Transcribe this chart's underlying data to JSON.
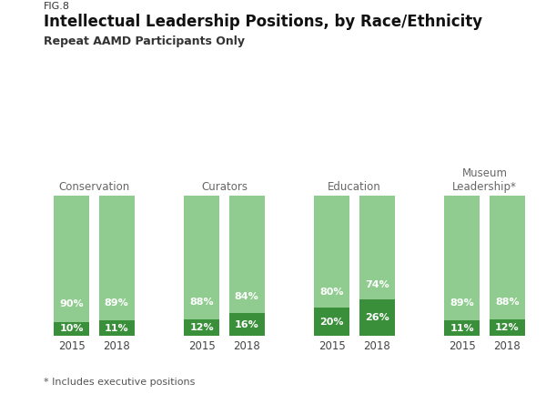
{
  "fig_label": "FIG.8",
  "title": "Intellectual Leadership Positions, by Race/Ethnicity",
  "subtitle": "Repeat AAMD Participants Only",
  "footnote": "* Includes executive positions",
  "categories": [
    "Conservation",
    "Curators",
    "Education",
    "Museum\nLeadership*"
  ],
  "years": [
    "2015",
    "2018"
  ],
  "white_values": [
    90,
    89,
    88,
    84,
    80,
    74,
    89,
    88
  ],
  "poc_values": [
    10,
    11,
    12,
    16,
    20,
    26,
    11,
    12
  ],
  "color_white": "#90cc90",
  "color_poc": "#3a8f3a",
  "bar_width": 0.6,
  "background_color": "#ffffff",
  "title_fontsize": 12,
  "subtitle_fontsize": 9,
  "label_fontsize": 8.5,
  "bar_label_fontsize": 8,
  "legend_fontsize": 8.5,
  "footnote_fontsize": 8,
  "category_fontsize": 8.5
}
